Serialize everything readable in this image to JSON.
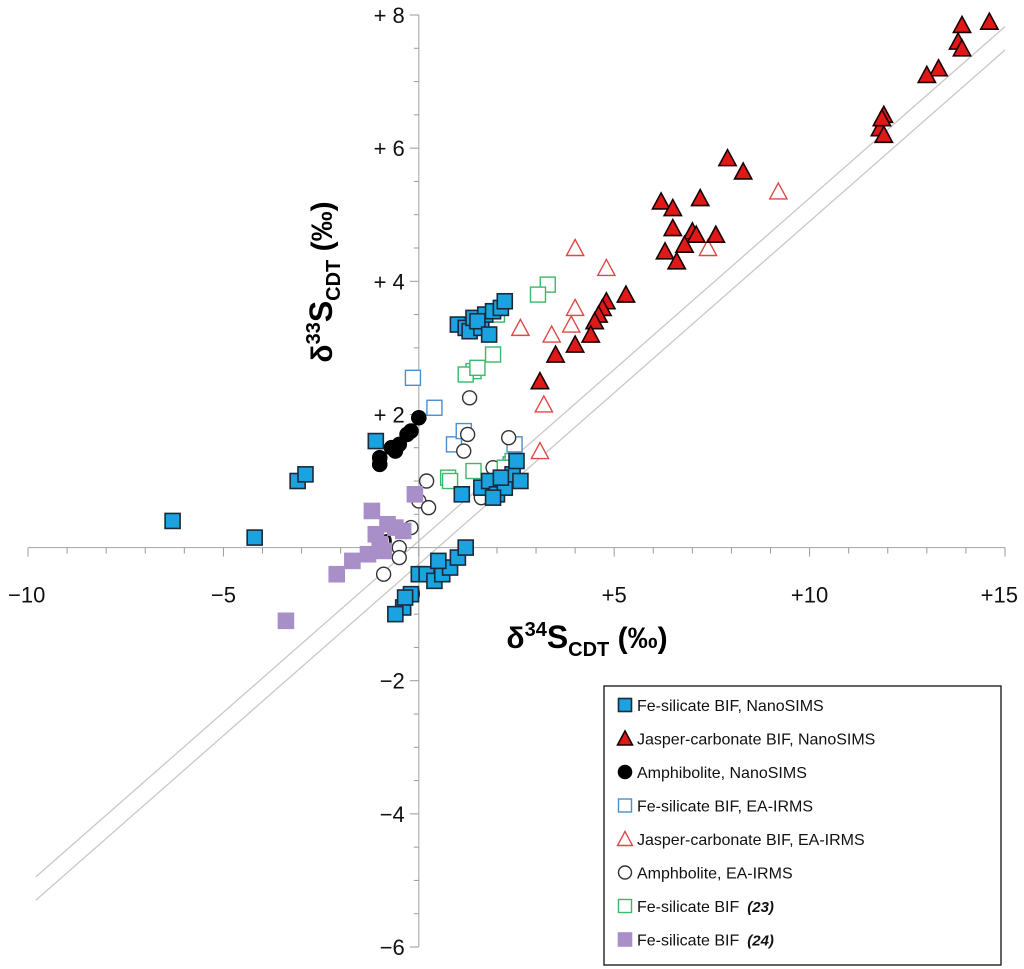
{
  "chart_data": {
    "type": "scatter",
    "title": "",
    "xlabel": "δ34SCDT (‰)",
    "ylabel": "δ33SCDT (‰)",
    "xlabel_parts": {
      "delta": "δ",
      "mass": "34",
      "element": "S",
      "sub": "CDT",
      "unit": " (‰)"
    },
    "ylabel_parts": {
      "delta": "δ",
      "mass": "33",
      "element": "S",
      "sub": "CDT",
      "unit": " (‰)"
    },
    "xlim": [
      -10,
      15
    ],
    "ylim": [
      -6,
      8
    ],
    "x_ticks": [
      {
        "value": -10,
        "label": "−10"
      },
      {
        "value": -5,
        "label": "−5"
      },
      {
        "value": 0,
        "label": "0"
      },
      {
        "value": 5,
        "label": "+5"
      },
      {
        "value": 10,
        "label": "+10"
      },
      {
        "value": 15,
        "label": "+15"
      }
    ],
    "y_ticks": [
      {
        "value": 8,
        "label": "+ 8"
      },
      {
        "value": 6,
        "label": "+ 6"
      },
      {
        "value": 4,
        "label": "+ 4"
      },
      {
        "value": 2,
        "label": "+ 2"
      },
      {
        "value": 0,
        "label": "0"
      },
      {
        "value": -2,
        "label": "−2"
      },
      {
        "value": -4,
        "label": "−4"
      },
      {
        "value": -6,
        "label": "−6"
      }
    ],
    "reference_lines": [
      {
        "slope": 0.515,
        "intercept": 0.1,
        "color": "#c8c8c8"
      },
      {
        "slope": 0.515,
        "intercept": -0.25,
        "color": "#c8c8c8"
      }
    ],
    "legend_position": "bottom-right",
    "series": [
      {
        "name": "Fe-silicate BIF, NanoSIMS",
        "marker": "square",
        "filled": true,
        "color": "#1aa3e0",
        "stroke": "#1a2a3a",
        "points": [
          [
            -6.3,
            0.4
          ],
          [
            -4.2,
            0.15
          ],
          [
            -3.1,
            1.0
          ],
          [
            -2.9,
            1.1
          ],
          [
            -1.1,
            1.6
          ],
          [
            1.0,
            3.35
          ],
          [
            1.2,
            3.3
          ],
          [
            1.3,
            3.25
          ],
          [
            1.4,
            3.45
          ],
          [
            1.6,
            3.3
          ],
          [
            1.7,
            3.5
          ],
          [
            1.9,
            3.55
          ],
          [
            2.1,
            3.6
          ],
          [
            2.2,
            3.7
          ],
          [
            1.5,
            3.4
          ],
          [
            1.8,
            3.2
          ],
          [
            1.1,
            0.8
          ],
          [
            1.6,
            0.9
          ],
          [
            1.8,
            1.0
          ],
          [
            2.0,
            0.8
          ],
          [
            2.2,
            0.9
          ],
          [
            2.4,
            1.1
          ],
          [
            2.5,
            1.3
          ],
          [
            2.6,
            1.0
          ],
          [
            2.1,
            1.05
          ],
          [
            1.9,
            0.75
          ],
          [
            0.0,
            -0.4
          ],
          [
            0.2,
            -0.4
          ],
          [
            0.4,
            -0.5
          ],
          [
            0.6,
            -0.4
          ],
          [
            0.8,
            -0.3
          ],
          [
            1.0,
            -0.15
          ],
          [
            1.2,
            0.0
          ],
          [
            -0.2,
            -0.7
          ],
          [
            -0.4,
            -0.9
          ],
          [
            -0.6,
            -1.0
          ],
          [
            -0.35,
            -0.75
          ],
          [
            0.5,
            -0.2
          ]
        ]
      },
      {
        "name": "Jasper-carbonate BIF, NanoSIMS",
        "marker": "triangle",
        "filled": true,
        "color": "#e01818",
        "stroke": "#1a0000",
        "points": [
          [
            14.6,
            7.9
          ],
          [
            13.9,
            7.85
          ],
          [
            13.8,
            7.6
          ],
          [
            13.9,
            7.5
          ],
          [
            13.3,
            7.2
          ],
          [
            13.0,
            7.1
          ],
          [
            11.9,
            6.5
          ],
          [
            11.8,
            6.3
          ],
          [
            11.9,
            6.2
          ],
          [
            11.85,
            6.45
          ],
          [
            7.9,
            5.85
          ],
          [
            8.3,
            5.65
          ],
          [
            7.2,
            5.25
          ],
          [
            6.2,
            5.2
          ],
          [
            6.5,
            5.1
          ],
          [
            6.5,
            4.8
          ],
          [
            7.0,
            4.75
          ],
          [
            7.1,
            4.7
          ],
          [
            7.6,
            4.7
          ],
          [
            6.8,
            4.55
          ],
          [
            6.3,
            4.45
          ],
          [
            6.6,
            4.3
          ],
          [
            5.3,
            3.8
          ],
          [
            4.8,
            3.7
          ],
          [
            4.7,
            3.6
          ],
          [
            4.6,
            3.5
          ],
          [
            4.5,
            3.4
          ],
          [
            4.4,
            3.2
          ],
          [
            4.0,
            3.05
          ],
          [
            3.5,
            2.9
          ],
          [
            3.1,
            2.5
          ]
        ]
      },
      {
        "name": "Amphibolite, NanoSIMS",
        "marker": "circle",
        "filled": true,
        "color": "#000000",
        "stroke": "#000000",
        "points": [
          [
            -1.0,
            1.35
          ],
          [
            -1.0,
            1.25
          ],
          [
            -0.6,
            1.45
          ],
          [
            -0.5,
            1.55
          ],
          [
            -0.3,
            1.7
          ],
          [
            -0.2,
            1.75
          ],
          [
            0.0,
            1.95
          ],
          [
            -0.7,
            1.5
          ]
        ]
      },
      {
        "name": "Fe-silicate BIF, EA-IRMS",
        "marker": "square",
        "filled": false,
        "color": "#4a8ed0",
        "stroke": "#4a8ed0",
        "points": [
          [
            -0.15,
            2.55
          ],
          [
            0.4,
            2.1
          ],
          [
            0.9,
            1.55
          ],
          [
            1.15,
            1.75
          ],
          [
            2.45,
            1.55
          ],
          [
            2.35,
            1.25
          ]
        ]
      },
      {
        "name": "Jasper-carbonate BIF, EA-IRMS",
        "marker": "triangle",
        "filled": false,
        "color": "#e04848",
        "stroke": "#e04848",
        "points": [
          [
            9.2,
            5.35
          ],
          [
            7.4,
            4.5
          ],
          [
            4.8,
            4.2
          ],
          [
            4.0,
            4.5
          ],
          [
            4.0,
            3.6
          ],
          [
            3.9,
            3.35
          ],
          [
            3.4,
            3.2
          ],
          [
            2.6,
            3.3
          ],
          [
            3.2,
            2.15
          ],
          [
            3.1,
            1.45
          ]
        ]
      },
      {
        "name": "Amphbolite, EA-IRMS",
        "marker": "circle",
        "filled": false,
        "color": "#333333",
        "stroke": "#333333",
        "points": [
          [
            1.3,
            2.25
          ],
          [
            1.25,
            1.7
          ],
          [
            1.15,
            1.45
          ],
          [
            2.3,
            1.65
          ],
          [
            0.2,
            1.0
          ],
          [
            0.0,
            0.7
          ],
          [
            0.25,
            0.6
          ],
          [
            -0.2,
            0.3
          ],
          [
            -0.5,
            0.0
          ],
          [
            -0.5,
            -0.15
          ],
          [
            -0.9,
            -0.4
          ],
          [
            1.9,
            1.2
          ],
          [
            2.0,
            0.95
          ],
          [
            1.6,
            0.75
          ],
          [
            2.2,
            1.0
          ]
        ]
      },
      {
        "name": "Fe-silicate BIF",
        "ref": "23",
        "marker": "square",
        "filled": false,
        "color": "#3cb86a",
        "stroke": "#3cb86a",
        "points": [
          [
            3.3,
            3.95
          ],
          [
            3.05,
            3.8
          ],
          [
            2.0,
            3.5
          ],
          [
            1.9,
            2.9
          ],
          [
            1.4,
            2.65
          ],
          [
            1.2,
            2.6
          ],
          [
            1.5,
            2.7
          ],
          [
            2.4,
            1.3
          ],
          [
            0.75,
            1.05
          ],
          [
            0.8,
            1.0
          ],
          [
            1.4,
            1.15
          ],
          [
            2.2,
            1.2
          ]
        ]
      },
      {
        "name": "Fe-silicate BIF",
        "ref": "24",
        "marker": "square",
        "filled": true,
        "color": "#a88fc8",
        "stroke": "#a88fc8",
        "points": [
          [
            -3.4,
            -1.1
          ],
          [
            -2.1,
            -0.4
          ],
          [
            -1.7,
            -0.2
          ],
          [
            -1.3,
            -0.1
          ],
          [
            -1.0,
            0.05
          ],
          [
            -0.9,
            -0.05
          ],
          [
            -1.1,
            0.2
          ],
          [
            -0.8,
            0.35
          ],
          [
            -0.6,
            0.3
          ],
          [
            -1.2,
            0.55
          ],
          [
            -0.4,
            0.25
          ],
          [
            -0.1,
            0.8
          ]
        ]
      }
    ]
  }
}
